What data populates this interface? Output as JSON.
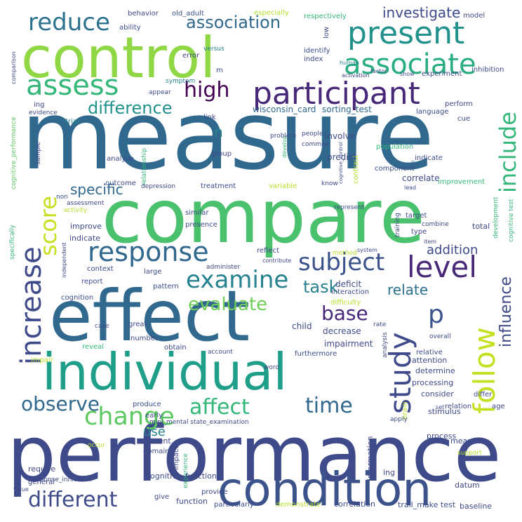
{
  "palette": {
    "background": "#ffffff",
    "dark_purple": "#482878",
    "indigo": "#3e4a89",
    "steel_blue": "#31688e",
    "teal": "#26828e",
    "sea_green": "#1f9e89",
    "green": "#35b779",
    "light_green": "#6ece58",
    "lime": "#b5de2b",
    "yellow": "#e0d92b"
  },
  "words": [
    {
      "text": "measure",
      "color": "#31688e"
    },
    {
      "text": "compare",
      "color": "#4ac16d"
    },
    {
      "text": "performance",
      "color": "#3e4a89"
    },
    {
      "text": "control",
      "color": "#8fd744"
    },
    {
      "text": "effect",
      "color": "#31688e"
    },
    {
      "text": "individual",
      "color": "#1f9e89"
    },
    {
      "text": "condition",
      "color": "#3b528b"
    },
    {
      "text": "participant",
      "color": "#482878"
    },
    {
      "text": "present",
      "color": "#21918c"
    },
    {
      "text": "associate",
      "color": "#27ad81"
    },
    {
      "text": "increase",
      "color": "#3e4a89"
    },
    {
      "text": "response",
      "color": "#31688e"
    },
    {
      "text": "assess",
      "color": "#35b779"
    },
    {
      "text": "follow",
      "color": "#c5e021"
    },
    {
      "text": "study",
      "color": "#3e4a89"
    },
    {
      "text": "level",
      "color": "#482878"
    },
    {
      "text": "include",
      "color": "#35b779"
    },
    {
      "text": "reduce",
      "color": "#2c728e"
    },
    {
      "text": "high",
      "color": "#440154"
    },
    {
      "text": "change",
      "color": "#5ec962"
    },
    {
      "text": "examine",
      "color": "#26828e"
    },
    {
      "text": "subject",
      "color": "#3b528b"
    },
    {
      "text": "score",
      "color": "#c8e020"
    },
    {
      "text": "observe",
      "color": "#31688e"
    },
    {
      "text": "affect",
      "color": "#35b779"
    },
    {
      "text": "time",
      "color": "#31688e"
    },
    {
      "text": "different",
      "color": "#3e4a89"
    },
    {
      "text": "association",
      "color": "#31688e"
    },
    {
      "text": "difference",
      "color": "#21918c"
    },
    {
      "text": "investigate",
      "color": "#3e4a89"
    },
    {
      "text": "task",
      "color": "#26828e"
    },
    {
      "text": "p",
      "color": "#3b528b"
    },
    {
      "text": "base",
      "color": "#482878"
    },
    {
      "text": "evaluate",
      "color": "#6ece58"
    },
    {
      "text": "influence",
      "color": "#3e4a89"
    },
    {
      "text": "relate",
      "color": "#2c728e"
    },
    {
      "text": "specific",
      "color": "#31688e"
    },
    {
      "text": "addition",
      "color": "#3e4a89"
    },
    {
      "text": "use",
      "color": "#26828e"
    },
    {
      "text": "n",
      "color": "#26828e"
    },
    {
      "text": "wisconsin_card",
      "color": "#31688e"
    },
    {
      "text": "sorting_test",
      "color": "#31688e"
    },
    {
      "text": "ability",
      "color": "#3e4a89"
    },
    {
      "text": "behavior",
      "color": "#3e4a89"
    },
    {
      "text": "old_adult",
      "color": "#3b528b"
    },
    {
      "text": "especially",
      "color": "#b5de2b"
    },
    {
      "text": "respectively",
      "color": "#35b779"
    },
    {
      "text": "model",
      "color": "#3e4a89"
    },
    {
      "text": "comparison",
      "color": "#3e4a89"
    },
    {
      "text": "low",
      "color": "#3e4a89"
    },
    {
      "text": "identify",
      "color": "#3e4a89"
    },
    {
      "text": "index",
      "color": "#3e4a89"
    },
    {
      "text": "human",
      "color": "#26828e"
    },
    {
      "text": "factor",
      "color": "#3e4a89"
    },
    {
      "text": "show",
      "color": "#3e4a89"
    },
    {
      "text": "experiment",
      "color": "#3e4a89"
    },
    {
      "text": "inhibition",
      "color": "#3e4a89"
    },
    {
      "text": "activation",
      "color": "#3e4a89"
    },
    {
      "text": "error",
      "color": "#3e4a89"
    },
    {
      "text": "versus",
      "color": "#26828e"
    },
    {
      "text": "m",
      "color": "#3e4a89"
    },
    {
      "text": "symptom",
      "color": "#26828e"
    },
    {
      "text": "appear",
      "color": "#3e4a89"
    },
    {
      "text": "trial",
      "color": "#26828e"
    },
    {
      "text": "link",
      "color": "#3e4a89"
    },
    {
      "text": "language",
      "color": "#3e4a89"
    },
    {
      "text": "perform",
      "color": "#3e4a89"
    },
    {
      "text": "cue",
      "color": "#3e4a89"
    },
    {
      "text": "evidence",
      "color": "#3e4a89"
    },
    {
      "text": "cognitive_performance",
      "color": "#5ec962"
    },
    {
      "text": "ing",
      "color": "#3e4a89"
    },
    {
      "text": "people",
      "color": "#3e4a89"
    },
    {
      "text": "common",
      "color": "#3e4a89"
    },
    {
      "text": "involve",
      "color": "#3e4a89"
    },
    {
      "text": "develop",
      "color": "#35b779"
    },
    {
      "text": "problem",
      "color": "#3e4a89"
    },
    {
      "text": "contrast",
      "color": "#b5de2b"
    },
    {
      "text": "population",
      "color": "#35b779"
    },
    {
      "text": "predict",
      "color": "#3e4a89"
    },
    {
      "text": "_indicate",
      "color": "#3e4a89"
    },
    {
      "text": "component",
      "color": "#3e4a89"
    },
    {
      "text": "correlate",
      "color": "#3e4a89"
    },
    {
      "text": "improvement",
      "color": "#35b779"
    },
    {
      "text": "lead",
      "color": "#3e4a89"
    },
    {
      "text": "sample",
      "color": "#3e4a89"
    },
    {
      "text": "analyze",
      "color": "#3e4a89"
    },
    {
      "text": "group",
      "color": "#3e4a89"
    },
    {
      "text": "relationship",
      "color": "#35b779"
    },
    {
      "text": "outcome",
      "color": "#3e4a89"
    },
    {
      "text": "depression",
      "color": "#3e4a89"
    },
    {
      "text": "treatment",
      "color": "#3e4a89"
    },
    {
      "text": "variable",
      "color": "#b5de2b"
    },
    {
      "text": "know",
      "color": "#3e4a89"
    },
    {
      "text": "cognitive_control",
      "color": "#3e4a89"
    },
    {
      "text": "assessment",
      "color": "#3e4a89"
    },
    {
      "text": "non",
      "color": "#3e4a89"
    },
    {
      "text": "activity",
      "color": "#b5de2b"
    },
    {
      "text": "similar",
      "color": "#3e4a89"
    },
    {
      "text": "presence",
      "color": "#3e4a89"
    },
    {
      "text": "represent",
      "color": "#3e4a89"
    },
    {
      "text": "target",
      "color": "#3e4a89"
    },
    {
      "text": "combine",
      "color": "#3e4a89"
    },
    {
      "text": "training",
      "color": "#3e4a89"
    },
    {
      "text": "development",
      "color": "#35b779"
    },
    {
      "text": "cognitive test",
      "color": "#35b779"
    },
    {
      "text": "total",
      "color": "#3e4a89"
    },
    {
      "text": "type",
      "color": "#3e4a89"
    },
    {
      "text": "item",
      "color": "#3e4a89"
    },
    {
      "text": "improve",
      "color": "#3e4a89"
    },
    {
      "text": "indicate",
      "color": "#3e4a89"
    },
    {
      "text": "context",
      "color": "#3e4a89"
    },
    {
      "text": "reflect",
      "color": "#3e4a89"
    },
    {
      "text": "contribute",
      "color": "#3e4a89"
    },
    {
      "text": "method",
      "color": "#b5de2b"
    },
    {
      "text": "system",
      "color": "#3e4a89"
    },
    {
      "text": "specifically",
      "color": "#35b779"
    },
    {
      "text": "independent",
      "color": "#3e4a89"
    },
    {
      "text": "report",
      "color": "#3e4a89"
    },
    {
      "text": "large",
      "color": "#3e4a89"
    },
    {
      "text": "pattern",
      "color": "#3e4a89"
    },
    {
      "text": "administer",
      "color": "#3e4a89"
    },
    {
      "text": "deficit",
      "color": "#3e4a89"
    },
    {
      "text": "interaction",
      "color": "#3e4a89"
    },
    {
      "text": "difficulty",
      "color": "#b5de2b"
    },
    {
      "text": "cognition",
      "color": "#3e4a89"
    },
    {
      "text": "rate",
      "color": "#3e4a89"
    },
    {
      "text": "overall",
      "color": "#3e4a89"
    },
    {
      "text": "child",
      "color": "#3e4a89"
    },
    {
      "text": "decrease",
      "color": "#3e4a89"
    },
    {
      "text": "great",
      "color": "#3e4a89"
    },
    {
      "text": "case",
      "color": "#3e4a89"
    },
    {
      "text": "impairment",
      "color": "#3e4a89"
    },
    {
      "text": "reveal",
      "color": "#35b779"
    },
    {
      "text": "number",
      "color": "#3e4a89"
    },
    {
      "text": "obtain",
      "color": "#3e4a89"
    },
    {
      "text": "account",
      "color": "#3e4a89"
    },
    {
      "text": "furthermore",
      "color": "#3e4a89"
    },
    {
      "text": "impair",
      "color": "#b5de2b"
    },
    {
      "text": "word",
      "color": "#3e4a89"
    },
    {
      "text": "analysis",
      "color": "#3e4a89"
    },
    {
      "text": "relative",
      "color": "#3e4a89"
    },
    {
      "text": "attention",
      "color": "#3e4a89"
    },
    {
      "text": "determine",
      "color": "#3e4a89"
    },
    {
      "text": "processing",
      "color": "#3e4a89"
    },
    {
      "text": "consider",
      "color": "#3e4a89"
    },
    {
      "text": "differ",
      "color": "#3e4a89"
    },
    {
      "text": "age",
      "color": "#3e4a89"
    },
    {
      "text": "relation",
      "color": "#3e4a89"
    },
    {
      "text": "set",
      "color": "#3e4a89"
    },
    {
      "text": "stimulus",
      "color": "#3e4a89"
    },
    {
      "text": "brain",
      "color": "#b5de2b"
    },
    {
      "text": "apply",
      "color": "#3e4a89"
    },
    {
      "text": "produce",
      "color": "#3e4a89"
    },
    {
      "text": "early",
      "color": "#3e4a89"
    },
    {
      "text": "mini_mental state_examination",
      "color": "#3e4a89"
    },
    {
      "text": "current",
      "color": "#3e4a89"
    },
    {
      "text": "domain",
      "color": "#3e4a89"
    },
    {
      "text": "impact",
      "color": "#3e4a89"
    },
    {
      "text": "experience",
      "color": "#35b779"
    },
    {
      "text": "mean",
      "color": "#3e4a89"
    },
    {
      "text": "support",
      "color": "#b5de2b"
    },
    {
      "text": "occur",
      "color": "#b5de2b"
    },
    {
      "text": "require",
      "color": "#3e4a89"
    },
    {
      "text": "response_inhibition",
      "color": "#3e4a89"
    },
    {
      "text": "cognitive_function",
      "color": "#3e4a89"
    },
    {
      "text": "general",
      "color": "#3e4a89"
    },
    {
      "text": "value",
      "color": "#3e4a89"
    },
    {
      "text": "provide",
      "color": "#3e4a89"
    },
    {
      "text": "give",
      "color": "#3e4a89"
    },
    {
      "text": "function",
      "color": "#3e4a89"
    },
    {
      "text": "particularly",
      "color": "#3e4a89"
    },
    {
      "text": "demonstrate",
      "color": "#b5de2b"
    },
    {
      "text": "information",
      "color": "#3e4a89"
    },
    {
      "text": "ing",
      "color": "#3e4a89"
    },
    {
      "text": "datum",
      "color": "#3e4a89"
    },
    {
      "text": "correlation",
      "color": "#3e4a89"
    },
    {
      "text": "trail_make test",
      "color": "#3e4a89"
    },
    {
      "text": "baseline",
      "color": "#3e4a89"
    },
    {
      "text": "process",
      "color": "#3e4a89"
    }
  ]
}
